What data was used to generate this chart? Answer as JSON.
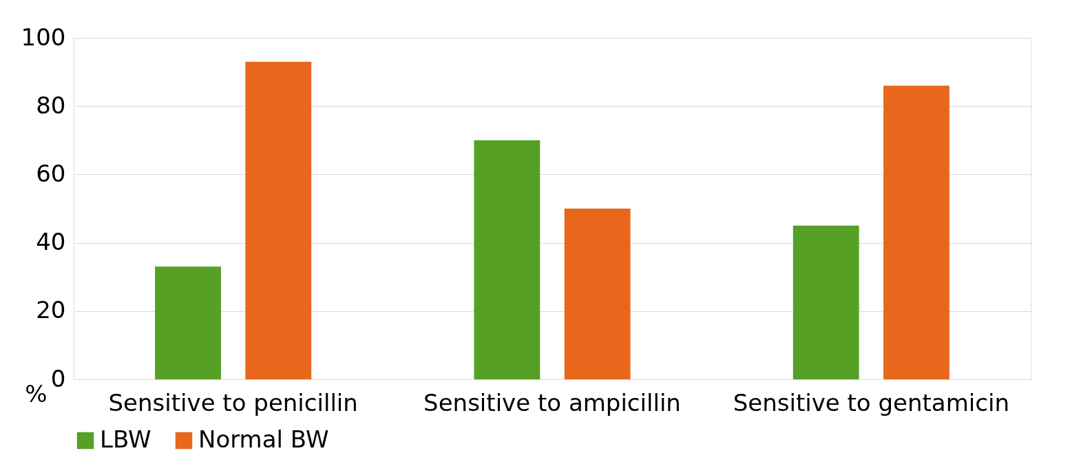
{
  "chart_data": {
    "type": "bar",
    "categories": [
      "Sensitive to penicillin",
      "Sensitive to ampicillin",
      "Sensitive to gentamicin"
    ],
    "series": [
      {
        "name": "LBW",
        "color": "#55a025",
        "values": [
          33,
          70,
          45
        ]
      },
      {
        "name": "Normal BW",
        "color": "#e8671c",
        "values": [
          93,
          50,
          86
        ]
      }
    ],
    "ylabel": "%",
    "ylim": [
      0,
      100
    ],
    "yticks": [
      0,
      20,
      40,
      60,
      80,
      100
    ],
    "grid": "y",
    "legend": "bottom"
  }
}
